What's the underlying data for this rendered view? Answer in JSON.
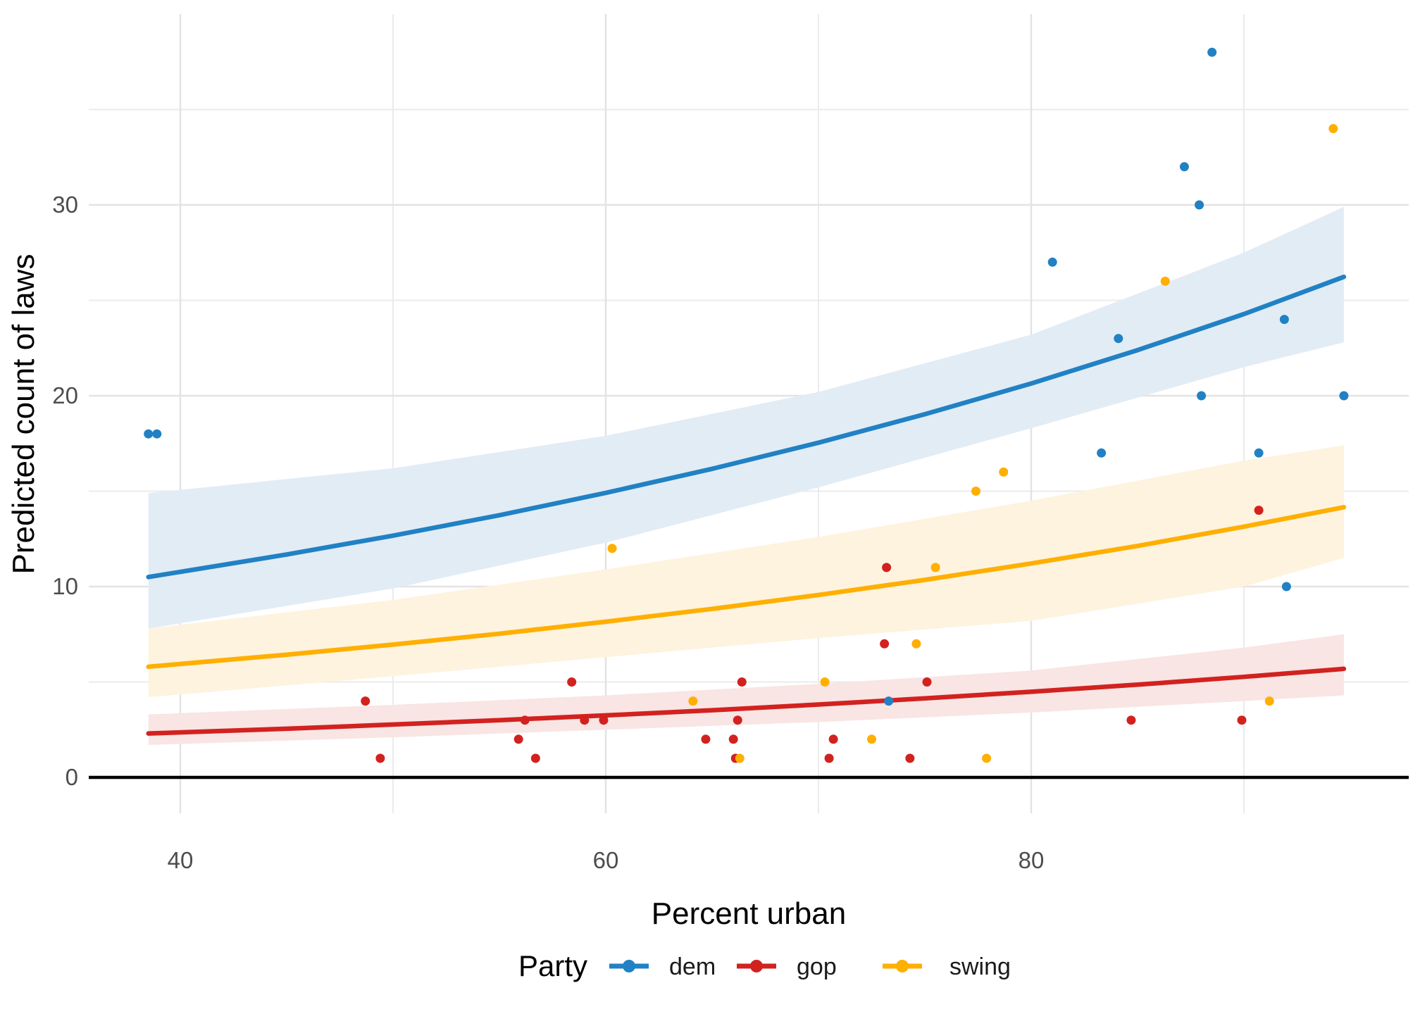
{
  "chart_data": {
    "type": "scatter",
    "title": "",
    "xlabel": "Percent urban",
    "ylabel": "Predicted count of laws",
    "xlim": [
      35.7,
      97.7
    ],
    "ylim": [
      -1.9,
      40
    ],
    "x_ticks": [
      40,
      60,
      80
    ],
    "x_minor_ticks": [
      50,
      70,
      90
    ],
    "y_ticks": [
      0,
      10,
      20,
      30
    ],
    "y_minor_ticks": [
      5,
      15,
      25,
      35
    ],
    "grid": "on",
    "zero_line_y": 0,
    "legend_position": "bottom",
    "colors": {
      "grid_major": "#e3e3e3",
      "grid_minor": "#ebebeb",
      "zero_line": "#000000",
      "tick_text": "#4d4d4d",
      "background": "#ffffff"
    },
    "series": [
      {
        "name": "dem",
        "color": "#2181c4",
        "ribbon_color": "#e2ecf5",
        "points": [
          [
            38.5,
            18
          ],
          [
            38.9,
            18
          ],
          [
            73.3,
            4
          ],
          [
            81,
            27
          ],
          [
            83.3,
            17
          ],
          [
            84.1,
            23
          ],
          [
            87.2,
            32
          ],
          [
            87.9,
            30
          ],
          [
            88,
            20
          ],
          [
            88.5,
            38
          ],
          [
            90.7,
            17
          ],
          [
            91.9,
            24
          ],
          [
            92,
            10
          ],
          [
            94.7,
            20
          ]
        ],
        "fit": {
          "x": [
            38.5,
            45,
            50,
            55,
            60,
            65,
            70,
            75,
            80,
            85,
            90,
            94.7
          ],
          "y": [
            10.5,
            11.68,
            12.67,
            13.74,
            14.91,
            16.17,
            17.54,
            19.03,
            20.64,
            22.39,
            24.28,
            26.23
          ]
        },
        "ribbon": {
          "x": [
            38.5,
            50,
            60,
            70,
            80,
            90,
            94.7
          ],
          "upper": [
            14.9,
            16.2,
            17.9,
            20.2,
            23.2,
            27.5,
            29.9
          ],
          "lower": [
            7.8,
            9.9,
            12.3,
            15.2,
            18.3,
            21.5,
            22.8
          ]
        }
      },
      {
        "name": "gop",
        "color": "#d2221f",
        "ribbon_color": "#f8e5e4",
        "points": [
          [
            48.7,
            4
          ],
          [
            49.4,
            1
          ],
          [
            55.9,
            2
          ],
          [
            56.2,
            3
          ],
          [
            56.7,
            1
          ],
          [
            58.4,
            5
          ],
          [
            59,
            3
          ],
          [
            59.9,
            3
          ],
          [
            64.7,
            2
          ],
          [
            66,
            2
          ],
          [
            66.1,
            1
          ],
          [
            66.2,
            3
          ],
          [
            66.4,
            5
          ],
          [
            70.5,
            1
          ],
          [
            70.7,
            2
          ],
          [
            73.1,
            7
          ],
          [
            73.2,
            11
          ],
          [
            74.3,
            1
          ],
          [
            75.1,
            5
          ],
          [
            84.7,
            3
          ],
          [
            89.9,
            3
          ],
          [
            90.7,
            14
          ]
        ],
        "fit": {
          "x": [
            38.5,
            45,
            50,
            55,
            60,
            65,
            70,
            75,
            80,
            85,
            90,
            94.7
          ],
          "y": [
            2.3,
            2.55,
            2.77,
            3.0,
            3.25,
            3.52,
            3.82,
            4.14,
            4.49,
            4.86,
            5.27,
            5.69
          ]
        },
        "ribbon": {
          "x": [
            38.5,
            50,
            60,
            70,
            80,
            90,
            94.7
          ],
          "upper": [
            3.3,
            3.8,
            4.3,
            4.9,
            5.6,
            6.8,
            7.5
          ],
          "lower": [
            1.7,
            2.1,
            2.5,
            2.9,
            3.4,
            4.0,
            4.3
          ]
        }
      },
      {
        "name": "swing",
        "color": "#ffaf00",
        "ribbon_color": "#fdf3df",
        "points": [
          [
            60.3,
            12
          ],
          [
            64.1,
            4
          ],
          [
            66.3,
            1
          ],
          [
            70.3,
            5
          ],
          [
            72.5,
            2
          ],
          [
            74.6,
            7
          ],
          [
            75.5,
            11
          ],
          [
            77.4,
            15
          ],
          [
            77.9,
            1
          ],
          [
            78.7,
            16
          ],
          [
            86.3,
            26
          ],
          [
            91.2,
            4
          ],
          [
            94.2,
            34
          ]
        ],
        "fit": {
          "x": [
            38.5,
            45,
            50,
            55,
            60,
            65,
            70,
            75,
            80,
            85,
            90,
            94.7
          ],
          "y": [
            5.8,
            6.43,
            6.96,
            7.53,
            8.16,
            8.83,
            9.56,
            10.35,
            11.21,
            12.13,
            13.14,
            14.16
          ]
        },
        "ribbon": {
          "x": [
            38.5,
            50,
            60,
            70,
            80,
            90,
            94.7
          ],
          "upper": [
            7.8,
            9.3,
            10.9,
            12.6,
            14.5,
            16.6,
            17.4
          ],
          "lower": [
            4.2,
            5.3,
            6.3,
            7.3,
            8.2,
            10.0,
            11.5
          ]
        }
      }
    ]
  },
  "legend": {
    "title": "Party",
    "items": [
      {
        "label": "dem"
      },
      {
        "label": "gop"
      },
      {
        "label": "swing"
      }
    ]
  }
}
